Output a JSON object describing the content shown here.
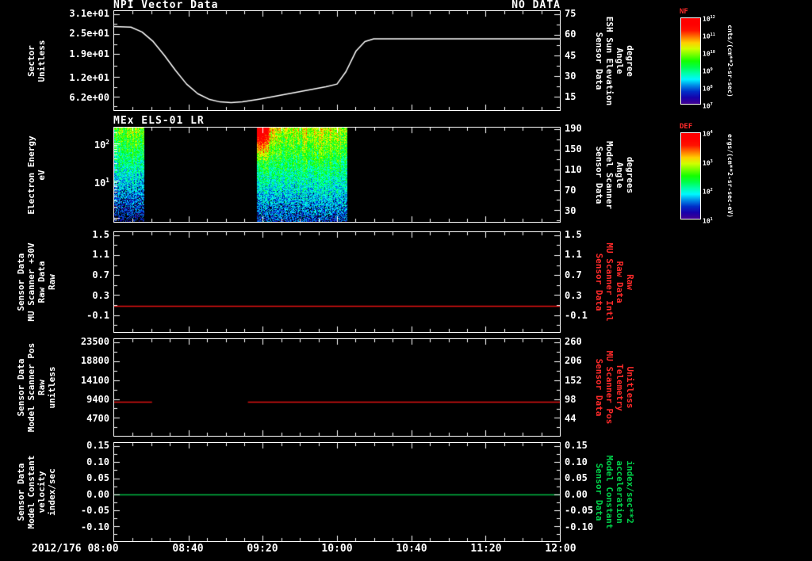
{
  "page": {
    "bg": "#000000",
    "fg": "#ffffff",
    "date_label": "2012/176 08:00",
    "x_tick_labels": [
      "08:40",
      "09:20",
      "10:00",
      "10:40",
      "11:20",
      "12:00"
    ]
  },
  "panels": [
    {
      "title": "NPI Vector Data",
      "title_right": "NO DATA",
      "left_label_lines": [
        "Sector",
        "Unitless"
      ],
      "left_tick_labels": [
        "3.1e+01",
        "2.5e+01",
        "1.9e+01",
        "1.2e+01",
        "6.2e+00"
      ],
      "right_tick_labels": [
        "75",
        "60",
        "45",
        "30",
        "15"
      ],
      "right_label_lines": [
        "Sensor Data",
        "ESH Sun Elevation",
        "Angle",
        "degree"
      ],
      "right_label_color": "#ffffff"
    },
    {
      "title": "MEx ELS-01 LR",
      "title_right": "",
      "left_label_lines": [
        "Electron Energy",
        "eV"
      ],
      "left_tick_labels": [
        "10^2",
        "10^1"
      ],
      "right_tick_labels": [
        "190",
        "150",
        "110",
        "70",
        "30"
      ],
      "right_label_lines": [
        "Sensor Data",
        "Model Scanner",
        "Angle",
        "degrees"
      ],
      "right_label_color": "#ffffff"
    },
    {
      "title": "",
      "title_right": "",
      "left_label_lines": [
        "Sensor Data",
        "MU Scanner +30V",
        "Raw Data",
        "Raw"
      ],
      "left_tick_labels": [
        "1.5",
        "1.1",
        "0.7",
        "0.3",
        "-0.1"
      ],
      "right_tick_labels": [
        "1.5",
        "1.1",
        "0.7",
        "0.3",
        "-0.1"
      ],
      "right_label_lines": [
        "Sensor Data",
        "MU Scanner Intl",
        "Raw Data",
        "Raw"
      ],
      "right_label_color": "#ff2a2a"
    },
    {
      "title": "",
      "title_right": "",
      "left_label_lines": [
        "Sensor Data",
        "Model Scanner Pos",
        "Raw",
        "unitless"
      ],
      "left_tick_labels": [
        "23500",
        "18800",
        "14100",
        "9400",
        "4700"
      ],
      "right_tick_labels": [
        "260",
        "206",
        "152",
        "98",
        "44"
      ],
      "right_label_lines": [
        "Sensor Data",
        "MU Scanner Pos",
        "Telemetry",
        "Unitless"
      ],
      "right_label_color": "#ff2a2a"
    },
    {
      "title": "",
      "title_right": "",
      "left_label_lines": [
        "Sensor Data",
        "Model Constant",
        "velocity",
        "index/sec"
      ],
      "left_tick_labels": [
        "0.15",
        "0.10",
        "0.05",
        "0.00",
        "-0.05",
        "-0.10"
      ],
      "right_tick_labels": [
        "0.15",
        "0.10",
        "0.05",
        "0.00",
        "-0.05",
        "-0.10"
      ],
      "right_label_lines": [
        "Sensor Data",
        "Model Constant",
        "acceleration",
        "index/sec**2"
      ],
      "right_label_color": "#00d24a"
    }
  ],
  "colorbars": [
    {
      "title": "NF",
      "title_color": "#ff2a2a",
      "tick_labels": [
        "10^12",
        "10^11",
        "10^10",
        "10^9",
        "10^8",
        "10^7"
      ],
      "unit": "cnts/(cm**2-sr-sec)"
    },
    {
      "title": "DEF",
      "title_color": "#ff2a2a",
      "tick_labels": [
        "10^4",
        "10^3",
        "10^2",
        "10^1"
      ],
      "unit": "ergs/(cm**2-sr-sec-eV)"
    }
  ],
  "chart_data": [
    {
      "type": "line",
      "panel_index": 0,
      "title": "NPI Vector Data",
      "note": "NPI sensor reports NO DATA; white trace is the ESH Sun Elevation Angle read on the right axis",
      "x_range_hours": [
        8,
        12
      ],
      "y_axis_left": {
        "label": "Sector Unitless",
        "top": 31.9,
        "bottom": 2.1,
        "ticks": [
          31,
          25,
          19,
          12,
          6.2
        ]
      },
      "y_axis_right": {
        "label": "Sensor Data ESH Sun Elevation Angle degree",
        "top": 77.2,
        "bottom": 5.0,
        "ticks": [
          75,
          60,
          45,
          30,
          15
        ]
      },
      "series": [
        {
          "name": "ESH Sun Elevation Angle",
          "color": "#ffffff",
          "axis": "right",
          "x_hours": [
            8.0,
            8.15,
            8.25,
            8.35,
            8.45,
            8.55,
            8.65,
            8.75,
            8.85,
            8.95,
            9.05,
            9.15,
            9.3,
            9.5,
            9.7,
            9.9,
            10.0,
            10.08,
            10.17,
            10.25,
            10.33,
            12.0
          ],
          "values": [
            66,
            65.5,
            62,
            55,
            45,
            34,
            24,
            17,
            13,
            11,
            10.5,
            11,
            13,
            16,
            19,
            22,
            24,
            33,
            48,
            55,
            57,
            57
          ]
        }
      ]
    },
    {
      "type": "heatmap",
      "panel_index": 1,
      "title": "MEx ELS-01 LR",
      "x_range_hours": [
        8,
        12
      ],
      "y_axis_left": {
        "label": "Electron Energy eV",
        "log": true,
        "top_exp": 2.42,
        "bottom_exp": -0.1,
        "ticks_exp": [
          2,
          1
        ]
      },
      "y_axis_right": {
        "label": "Sensor Data Model Scanner Angle degrees",
        "top": 193,
        "bottom": 7,
        "ticks": [
          190,
          150,
          110,
          70,
          30
        ]
      },
      "colormap": "rainbow",
      "segments": [
        {
          "t_start": 8.0,
          "t_end": 8.27,
          "hotspot": false,
          "peak": 0.64
        },
        {
          "t_start": 9.28,
          "t_end": 10.09,
          "hotspot": true,
          "peak": 0.72
        }
      ],
      "description": "Electron energy-time spectrogram: bright green band ~10-100 eV, red-orange enhancement above 100 eV near 09:20, blue/purple speckle at low flux; data gaps 08:16-09:17 and after 10:05"
    },
    {
      "type": "line",
      "panel_index": 2,
      "x_range_hours": [
        8,
        12
      ],
      "y_axis_left": {
        "label": "Sensor Data MU Scanner +30V Raw Data Raw",
        "top": 1.56,
        "bottom": -0.44,
        "ticks": [
          1.5,
          1.1,
          0.7,
          0.3,
          -0.1
        ]
      },
      "y_axis_right": {
        "label": "Sensor Data MU Scanner Intl Raw Data Raw",
        "top": 1.56,
        "bottom": -0.44,
        "ticks": [
          1.5,
          1.1,
          0.7,
          0.3,
          -0.1
        ]
      },
      "series": [
        {
          "name": "MU Scanner +30V Raw",
          "color": "#e01212",
          "axis": "left",
          "segments": [
            {
              "t": [
                8.0,
                12.0
              ],
              "value": 0.09
            }
          ]
        }
      ]
    },
    {
      "type": "line",
      "panel_index": 3,
      "x_range_hours": [
        8,
        12
      ],
      "y_axis_left": {
        "label": "Sensor Data Model Scanner Pos Raw unitless",
        "top": 24275,
        "bottom": 243,
        "ticks": [
          23500,
          18800,
          14100,
          9400,
          4700
        ]
      },
      "y_axis_right": {
        "label": "Sensor Data MU Scanner Pos Telemetry Unitless",
        "top": 269,
        "bottom": -7,
        "ticks": [
          260,
          206,
          152,
          98,
          44
        ]
      },
      "series": [
        {
          "name": "Model Scanner Pos Raw",
          "color": "#e01212",
          "axis": "left",
          "segments": [
            {
              "t": [
                8.0,
                8.34
              ],
              "value": 8800
            },
            {
              "t": [
                9.2,
                12.0
              ],
              "value": 8800
            }
          ]
        }
      ]
    },
    {
      "type": "line",
      "panel_index": 4,
      "x_range_hours": [
        8,
        12
      ],
      "y_axis_left": {
        "label": "Sensor Data Model Constant velocity index/sec",
        "top": 0.16,
        "bottom": -0.146,
        "ticks": [
          0.15,
          0.1,
          0.05,
          0.0,
          -0.05,
          -0.1
        ]
      },
      "y_axis_right": {
        "label": "Sensor Data Model Constant acceleration index/sec**2",
        "top": 0.16,
        "bottom": -0.146,
        "ticks": [
          0.15,
          0.1,
          0.05,
          0.0,
          -0.05,
          -0.1
        ]
      },
      "series": [
        {
          "name": "Model Constant velocity",
          "color": "#00b843",
          "axis": "left",
          "segments": [
            {
              "t": [
                8.0,
                12.0
              ],
              "value": 0.0
            }
          ]
        }
      ]
    }
  ]
}
